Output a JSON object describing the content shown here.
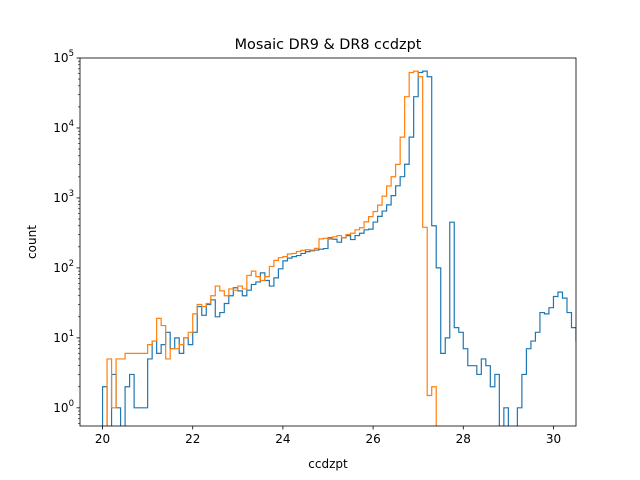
{
  "chart_data": {
    "type": "histogram",
    "title": "Mosaic DR9 & DR8 ccdzpt",
    "xlabel": "ccdzpt",
    "ylabel": "count",
    "xlim": [
      19.5,
      30.5
    ],
    "ylim": [
      0.55,
      100000
    ],
    "yscale": "log",
    "grid": false,
    "legend": "none",
    "x_ticks": [
      {
        "value": 20,
        "label": "20"
      },
      {
        "value": 22,
        "label": "22"
      },
      {
        "value": 24,
        "label": "24"
      },
      {
        "value": 26,
        "label": "26"
      },
      {
        "value": 28,
        "label": "28"
      },
      {
        "value": 30,
        "label": "30"
      }
    ],
    "y_ticks": [
      {
        "value": 1,
        "base": "10",
        "exp": "0"
      },
      {
        "value": 10,
        "base": "10",
        "exp": "1"
      },
      {
        "value": 100,
        "base": "10",
        "exp": "2"
      },
      {
        "value": 1000,
        "base": "10",
        "exp": "3"
      },
      {
        "value": 10000,
        "base": "10",
        "exp": "4"
      },
      {
        "value": 100000,
        "base": "10",
        "exp": "5"
      }
    ],
    "series": [
      {
        "color": "#1f77b4",
        "bin_start": 20.0,
        "bin_width": 0.1,
        "counts": [
          2,
          0,
          3,
          1,
          0,
          2,
          3,
          1,
          1,
          1,
          5,
          9,
          6,
          8,
          12,
          7,
          10,
          6,
          10,
          8,
          12,
          28,
          21,
          30,
          35,
          20,
          23,
          31,
          40,
          52,
          47,
          40,
          48,
          58,
          63,
          85,
          66,
          55,
          72,
          97,
          126,
          138,
          145,
          150,
          161,
          171,
          176,
          180,
          185,
          189,
          270,
          257,
          233,
          270,
          289,
          254,
          290,
          313,
          350,
          358,
          452,
          545,
          649,
          795,
          1080,
          1491,
          2011,
          3027,
          7400,
          28000,
          62000,
          65000,
          54000,
          400,
          100,
          6,
          10,
          450,
          14,
          12,
          7,
          4,
          4,
          3,
          5,
          4,
          2,
          3,
          0,
          1,
          0,
          0,
          1,
          3,
          7,
          9,
          12,
          23,
          22,
          27,
          39,
          45,
          37,
          23,
          14,
          9,
          8,
          0
        ]
      },
      {
        "color": "#ff7f0e",
        "bin_start": 20.0,
        "bin_width": 0.1,
        "counts": [
          0.5,
          5,
          1,
          5,
          5,
          6,
          6,
          6,
          6,
          6,
          8,
          9,
          19,
          15,
          5,
          7,
          7,
          8,
          10,
          12,
          22,
          30,
          28,
          31,
          40,
          55,
          47,
          40,
          50,
          48,
          55,
          50,
          78,
          90,
          75,
          66,
          75,
          105,
          128,
          140,
          145,
          158,
          161,
          172,
          178,
          182,
          180,
          190,
          260,
          265,
          258,
          278,
          290,
          270,
          300,
          313,
          350,
          375,
          455,
          540,
          640,
          790,
          1060,
          1480,
          2010,
          3020,
          7400,
          28000,
          62000,
          65000,
          54000,
          380,
          1.5,
          2,
          0
        ]
      }
    ]
  }
}
